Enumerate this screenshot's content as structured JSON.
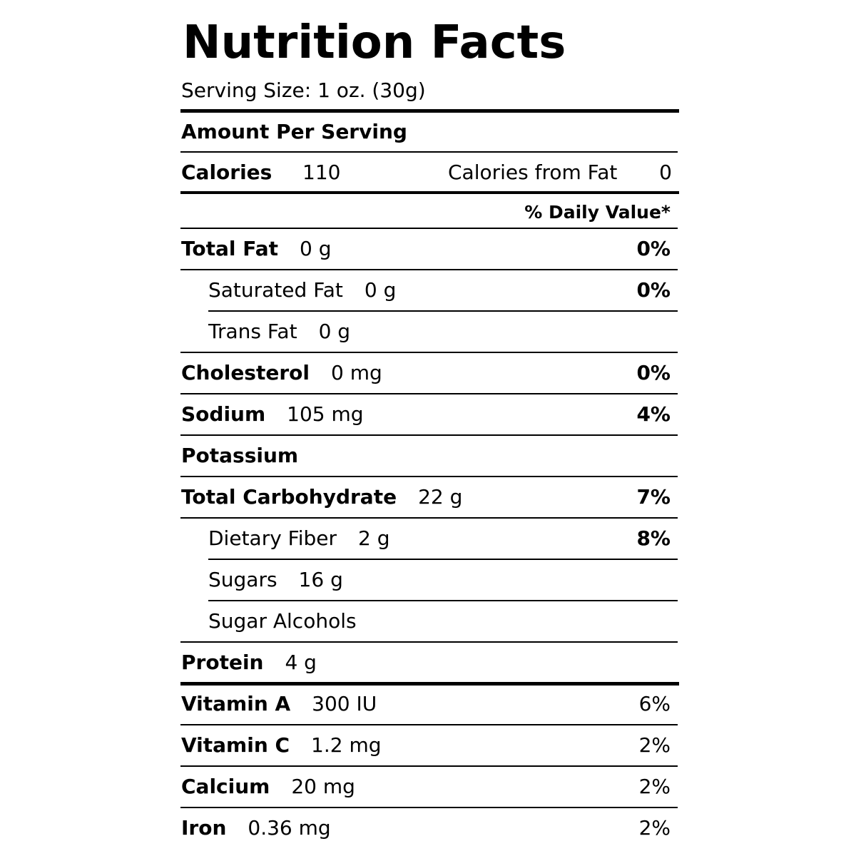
{
  "title": "Nutrition Facts",
  "serving_size": "Serving Size: 1 oz. (30g)",
  "amount_per_serving": "Amount Per Serving",
  "calories": {
    "label": "Calories",
    "value": "110",
    "from_fat_label": "Calories from Fat",
    "from_fat_value": "0"
  },
  "daily_value_header": "% Daily Value*",
  "nutrients": [
    {
      "name": "Total Fat",
      "amount": "0 g",
      "dv": "0%",
      "sub": false
    },
    {
      "name": "Saturated Fat",
      "amount": "0 g",
      "dv": "0%",
      "sub": true
    },
    {
      "name": "Trans Fat",
      "amount": "0 g",
      "sub": true
    },
    {
      "name": "Cholesterol",
      "amount": "0 mg",
      "dv": "0%",
      "sub": false
    },
    {
      "name": "Sodium",
      "amount": "105 mg",
      "dv": "4%",
      "sub": false
    },
    {
      "name": "Potassium",
      "sub": false
    },
    {
      "name": "Total Carbohydrate",
      "amount": "22 g",
      "dv": "7%",
      "sub": false
    },
    {
      "name": "Dietary Fiber",
      "amount": "2 g",
      "dv": "8%",
      "sub": true
    },
    {
      "name": "Sugars",
      "amount": "16 g",
      "sub": true
    },
    {
      "name": "Sugar Alcohols",
      "sub": true
    },
    {
      "name": "Protein",
      "amount": "4 g",
      "sub": false
    }
  ],
  "vitamins": [
    {
      "name": "Vitamin A",
      "amount": "300 IU",
      "dv": "6%"
    },
    {
      "name": "Vitamin C",
      "amount": "1.2 mg",
      "dv": "2%"
    },
    {
      "name": "Calcium",
      "amount": "20 mg",
      "dv": "2%"
    },
    {
      "name": "Iron",
      "amount": "0.36 mg",
      "dv": "2%"
    }
  ]
}
